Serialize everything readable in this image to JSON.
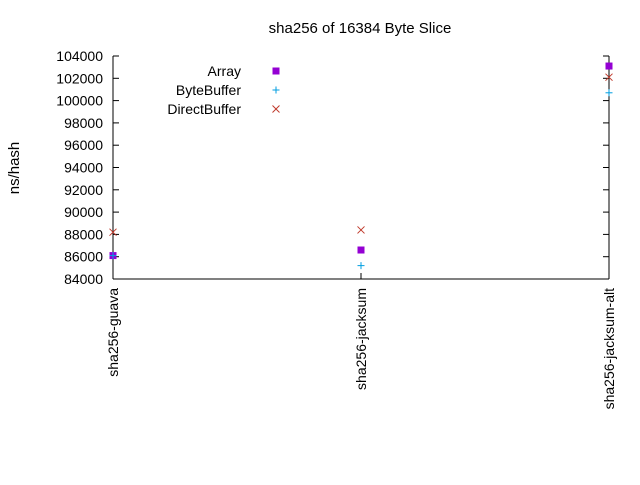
{
  "chart_data": {
    "type": "scatter",
    "title": "sha256 of 16384 Byte Slice",
    "xlabel": "",
    "ylabel": "ns/hash",
    "categories": [
      "sha256-guava",
      "sha256-jacksum",
      "sha256-jacksum-alt"
    ],
    "ylim": [
      84000,
      104000
    ],
    "yticks": [
      84000,
      86000,
      88000,
      90000,
      92000,
      94000,
      96000,
      98000,
      100000,
      102000,
      104000
    ],
    "grid": false,
    "legend_position": "top-left",
    "series": [
      {
        "name": "Array",
        "marker": "filled-square",
        "color": "#9400d3",
        "values": [
          86100,
          86600,
          103100
        ]
      },
      {
        "name": "ByteBuffer",
        "marker": "plus",
        "color": "#009ee0",
        "values": [
          86100,
          85200,
          100700
        ]
      },
      {
        "name": "DirectBuffer",
        "marker": "cross",
        "color": "#c0392b",
        "values": [
          88200,
          88400,
          102100
        ]
      }
    ]
  }
}
